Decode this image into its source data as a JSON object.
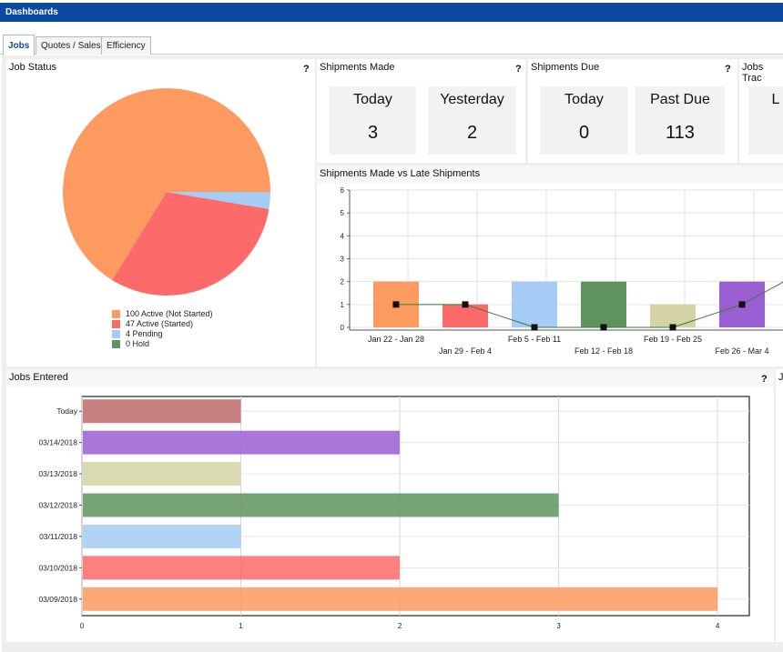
{
  "app": {
    "title": "Dashboards"
  },
  "tabs": [
    {
      "label": "Jobs",
      "active": true
    },
    {
      "label": "Quotes / Sales",
      "active": false
    },
    {
      "label": "Efficiency",
      "active": false
    }
  ],
  "panels": {
    "job_status": {
      "title": "Job Status",
      "help": "?",
      "legend": [
        {
          "label": "100 Active (Not Started)",
          "color": "#fc9a5f"
        },
        {
          "label": "47 Active (Started)",
          "color": "#fc6a6a"
        },
        {
          "label": "4 Pending",
          "color": "#a6cbf5"
        },
        {
          "label": "0 Hold",
          "color": "#5f945f"
        }
      ]
    },
    "shipments_made": {
      "title": "Shipments Made",
      "help": "?",
      "today_label": "Today",
      "today_value": "3",
      "yesterday_label": "Yesterday",
      "yesterday_value": "2"
    },
    "shipments_due": {
      "title": "Shipments Due",
      "help": "?",
      "today_label": "Today",
      "today_value": "0",
      "past_due_label": "Past Due",
      "past_due_value": "113"
    },
    "jobs_tracking": {
      "title": "Jobs Trac",
      "kpi_label": "L"
    },
    "shipments_chart": {
      "title": "Shipments Made vs Late Shipments"
    },
    "jobs_entered": {
      "title": "Jobs Entered",
      "help": "?"
    },
    "right_cut": {
      "title": "Jo"
    }
  },
  "chart_data": [
    {
      "type": "pie",
      "title": "Job Status",
      "labels": [
        "Active (Not Started)",
        "Active (Started)",
        "Pending",
        "Hold"
      ],
      "values": [
        100,
        47,
        4,
        0
      ],
      "colors": [
        "#fc9a5f",
        "#fc6a6a",
        "#a6cbf5",
        "#5f945f"
      ]
    },
    {
      "type": "bar",
      "title": "Shipments Made vs Late Shipments",
      "categories": [
        "Jan 22 - Jan 28",
        "Jan 29 - Feb 4",
        "Feb 5 - Feb 11",
        "Feb 12 - Feb 18",
        "Feb 19 - Feb 25",
        "Feb 26 - Mar 4"
      ],
      "series": [
        {
          "type": "bar",
          "values": [
            2,
            1,
            2,
            2,
            1,
            2
          ],
          "colors": [
            "#fc9a5f",
            "#fc6a6a",
            "#a6cbf5",
            "#5f945f",
            "#d3d3a5",
            "#9a5fd3"
          ]
        },
        {
          "type": "line",
          "values": [
            1,
            1,
            0,
            0,
            0,
            1
          ],
          "color": "#3a7a3a"
        }
      ],
      "ylim": [
        0,
        6
      ],
      "yticks": [
        "0",
        "1",
        "2",
        "3",
        "4",
        "5",
        "6"
      ],
      "grid": true
    },
    {
      "type": "bar",
      "orientation": "horizontal",
      "title": "Jobs Entered",
      "categories": [
        "Today",
        "03/14/2018",
        "03/13/2018",
        "03/12/2018",
        "03/11/2018",
        "03/10/2018",
        "03/09/2018"
      ],
      "values": [
        1,
        2,
        1,
        3,
        1,
        2,
        4
      ],
      "colors": [
        "#c06a6a",
        "#9a5fd3",
        "#d3d3a5",
        "#5f945f",
        "#a6cbf5",
        "#fc6a6a",
        "#fc9a5f"
      ],
      "xlim": [
        0,
        4.2
      ],
      "xticks": [
        "0",
        "1",
        "2",
        "3",
        "4"
      ],
      "grid": true
    }
  ]
}
